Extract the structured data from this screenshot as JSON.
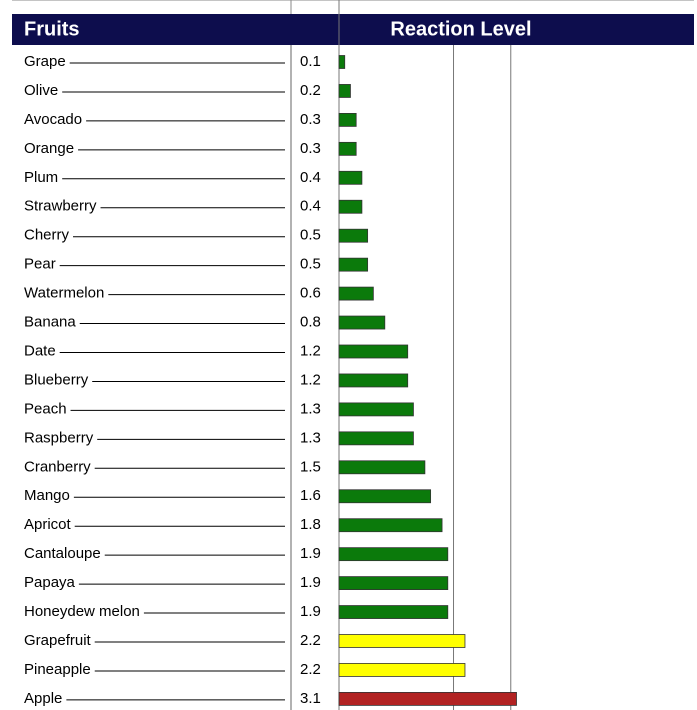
{
  "chart_data": {
    "type": "bar",
    "orientation": "horizontal",
    "headers": [
      "Fruits",
      "Reaction Level"
    ],
    "categories": [
      "Grape",
      "Olive",
      "Avocado",
      "Orange",
      "Plum",
      "Strawberry",
      "Cherry",
      "Pear",
      "Watermelon",
      "Banana",
      "Date",
      "Blueberry",
      "Peach",
      "Raspberry",
      "Cranberry",
      "Mango",
      "Apricot",
      "Cantaloupe",
      "Papaya",
      "Honeydew melon",
      "Grapefruit",
      "Pineapple",
      "Apple"
    ],
    "values": [
      0.1,
      0.2,
      0.3,
      0.3,
      0.4,
      0.4,
      0.5,
      0.5,
      0.6,
      0.8,
      1.2,
      1.2,
      1.3,
      1.3,
      1.5,
      1.6,
      1.8,
      1.9,
      1.9,
      1.9,
      2.2,
      2.2,
      3.1
    ],
    "colors": [
      "#0b7a0b",
      "#0b7a0b",
      "#0b7a0b",
      "#0b7a0b",
      "#0b7a0b",
      "#0b7a0b",
      "#0b7a0b",
      "#0b7a0b",
      "#0b7a0b",
      "#0b7a0b",
      "#0b7a0b",
      "#0b7a0b",
      "#0b7a0b",
      "#0b7a0b",
      "#0b7a0b",
      "#0b7a0b",
      "#0b7a0b",
      "#0b7a0b",
      "#0b7a0b",
      "#0b7a0b",
      "#ffff00",
      "#ffff00",
      "#b22222"
    ],
    "xlim": [
      0,
      6.2
    ],
    "grid_lines": [
      0,
      2,
      3
    ]
  }
}
